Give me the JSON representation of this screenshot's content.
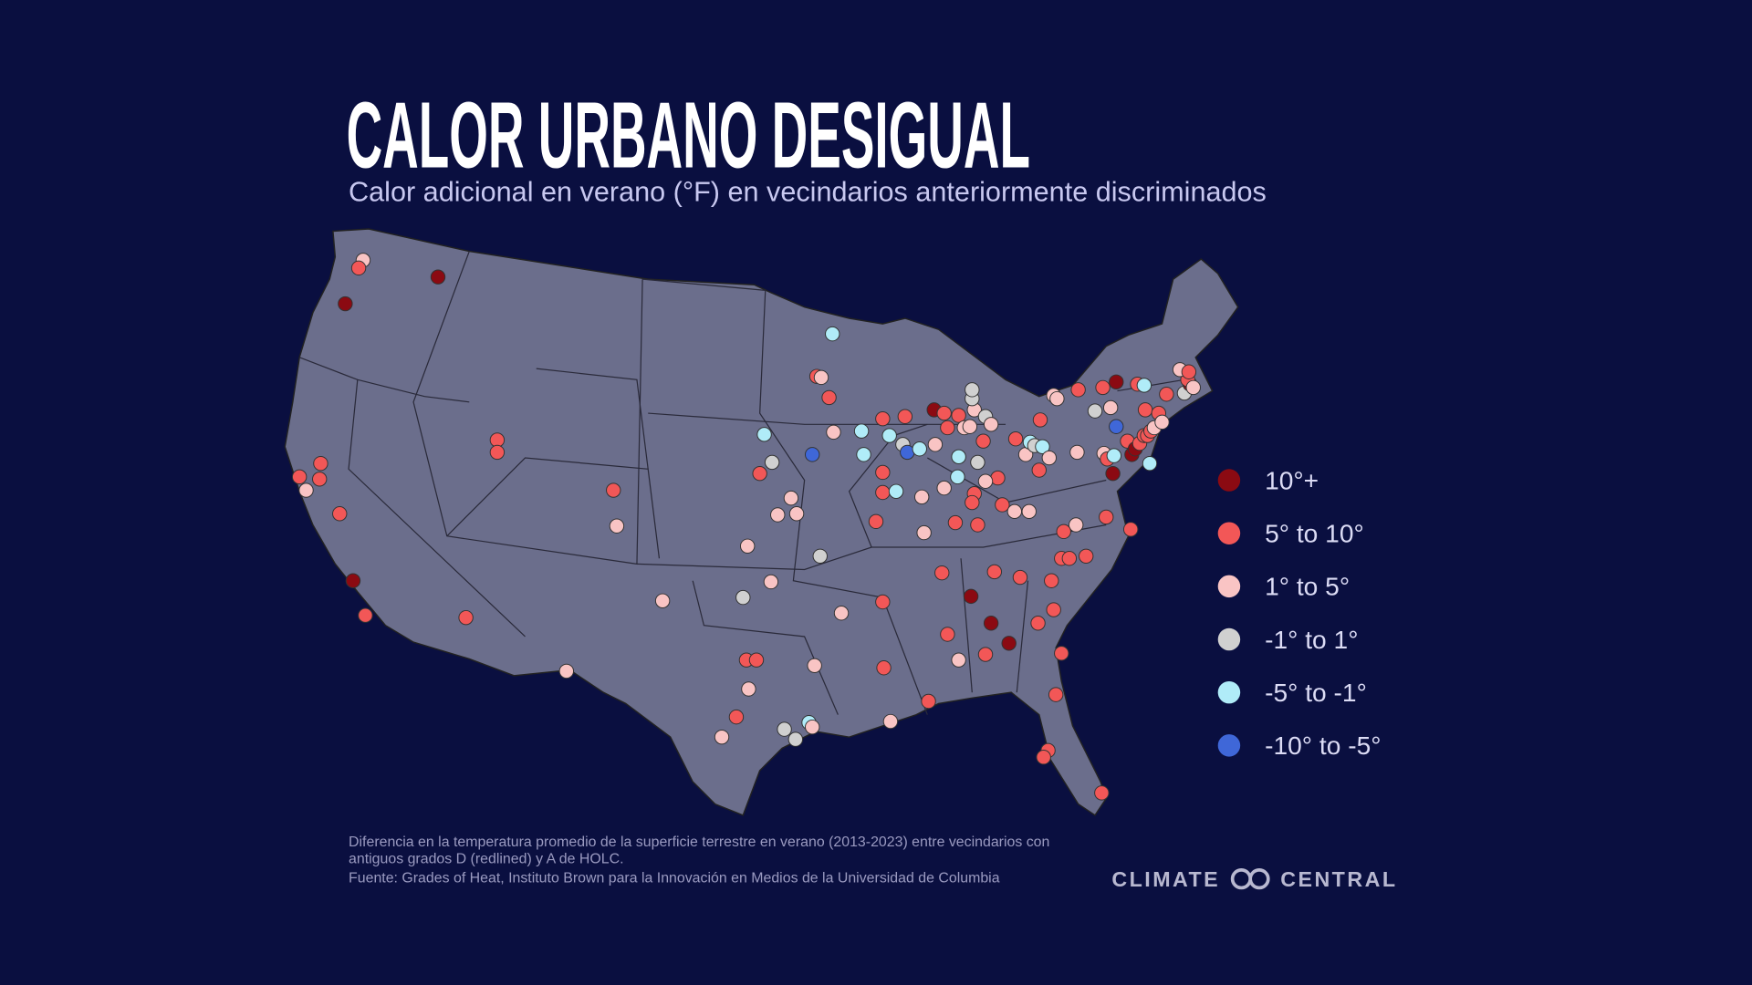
{
  "header": {
    "title": "CALOR URBANO DESIGUAL",
    "subtitle": "Calor adicional en verano (°F) en vecindarios anteriormente discriminados"
  },
  "legend": [
    {
      "label": "10°+",
      "color": "#8b0a12"
    },
    {
      "label": "5° to 10°",
      "color": "#f25757"
    },
    {
      "label": "1° to 5°",
      "color": "#f9c4c4"
    },
    {
      "label": "-1° to 1°",
      "color": "#d0d0d0"
    },
    {
      "label": "-5° to -1°",
      "color": "#b0ecf8"
    },
    {
      "label": "-10° to -5°",
      "color": "#3f67d8"
    }
  ],
  "footer": {
    "note_lines": [
      "Diferencia en la temperatura promedio de la superficie terrestre en verano (2013-2023) entre vecindarios con",
      "antiguos grados D (redlined) y A de HOLC."
    ],
    "source": "Fuente: Grades of Heat, Instituto Brown para la Innovación en Medios de la Universidad de Columbia"
  },
  "logo": {
    "left": "CLIMATE",
    "right": "CENTRAL"
  }
}
